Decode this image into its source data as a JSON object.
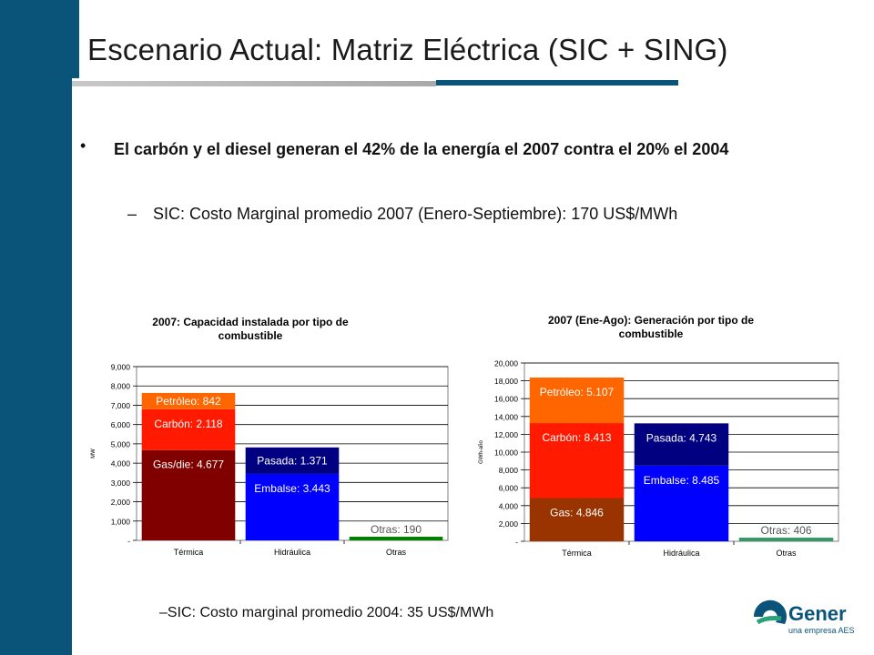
{
  "slide": {
    "title": "Escenario Actual: Matriz Eléctrica (SIC + SING)",
    "bullet": "El carbón y el diesel generan el 42% de la energía el 2007 contra el 20% el 2004",
    "bullet_marker": "•",
    "sub_dash": "–",
    "sub_bullet": "SIC: Costo Marginal promedio 2007 (Enero-Septiembre):   170 US$/MWh",
    "note": "–SIC: Costo marginal promedio 2004:  35 US$/MWh",
    "logo": {
      "name": "Gener",
      "tagline": "una empresa AES",
      "color": "#0b5479",
      "accent": "#2aa37a"
    }
  },
  "chart_data": [
    {
      "type": "bar",
      "stacked": true,
      "title_lines": [
        "2007: Capacidad instalada por tipo de",
        "combustible"
      ],
      "ylabel": "MW",
      "ylim": [
        0,
        9000
      ],
      "yticks": [
        "-",
        "1,000",
        "2,000",
        "3,000",
        "4,000",
        "5,000",
        "6,000",
        "7,000",
        "8,000",
        "9,000"
      ],
      "categories": [
        "Térmica",
        "Hidráulica",
        "Otras"
      ],
      "grid": true,
      "legend": "none",
      "bars": [
        {
          "category": "Térmica",
          "segments": [
            {
              "name": "Gas/die",
              "value": 4677,
              "label": "Gas/die: 4.677",
              "color": "#800000"
            },
            {
              "name": "Carbón",
              "value": 2118,
              "label": "Carbón: 2.118",
              "color": "#ff1a00"
            },
            {
              "name": "Petróleo",
              "value": 842,
              "label": "Petróleo: 842",
              "color": "#ff6600"
            }
          ]
        },
        {
          "category": "Hidráulica",
          "segments": [
            {
              "name": "Embalse",
              "value": 3443,
              "label": "Embalse: 3.443",
              "color": "#0000ff"
            },
            {
              "name": "Pasada",
              "value": 1371,
              "label": "Pasada: 1.371",
              "color": "#000080"
            }
          ]
        },
        {
          "category": "Otras",
          "segments": [
            {
              "name": "Otras",
              "value": 190,
              "label": "Otras: 190",
              "color": "#008000"
            }
          ]
        }
      ]
    },
    {
      "type": "bar",
      "stacked": true,
      "title_lines": [
        "2007 (Ene-Ago): Generación por tipo de",
        "combustible"
      ],
      "ylabel": "GWh-año",
      "ylim": [
        0,
        20000
      ],
      "yticks": [
        "-",
        "2,000",
        "4,000",
        "6,000",
        "8,000",
        "10,000",
        "12,000",
        "14,000",
        "16,000",
        "18,000",
        "20,000"
      ],
      "categories": [
        "Térmica",
        "Hidráulica",
        "Otras"
      ],
      "grid": true,
      "legend": "none",
      "bars": [
        {
          "category": "Térmica",
          "segments": [
            {
              "name": "Gas",
              "value": 4846,
              "label": "Gas: 4.846",
              "color": "#993300"
            },
            {
              "name": "Carbón",
              "value": 8413,
              "label": "Carbón: 8.413",
              "color": "#ff1a00"
            },
            {
              "name": "Petróleo",
              "value": 5107,
              "label": "Petróleo: 5.107",
              "color": "#ff6600"
            }
          ]
        },
        {
          "category": "Hidráulica",
          "segments": [
            {
              "name": "Embalse",
              "value": 8485,
              "label": "Embalse: 8.485",
              "color": "#0000ff"
            },
            {
              "name": "Pasada",
              "value": 4743,
              "label": "Pasada: 4.743",
              "color": "#000080"
            }
          ]
        },
        {
          "category": "Otras",
          "segments": [
            {
              "name": "Otras",
              "value": 406,
              "label": "Otras: 406",
              "color": "#339966"
            }
          ]
        }
      ]
    }
  ]
}
